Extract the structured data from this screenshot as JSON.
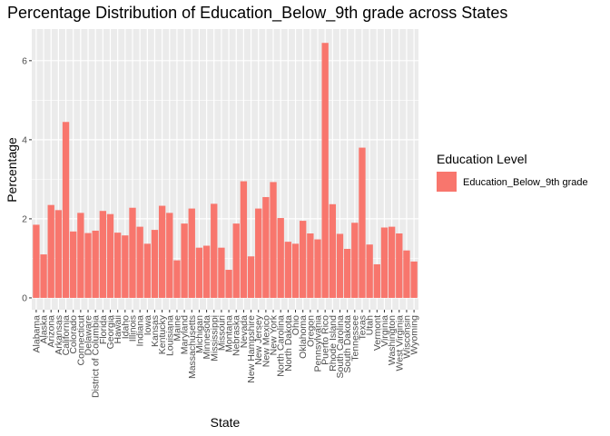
{
  "chart_data": {
    "type": "bar",
    "title": "Percentage Distribution of Education_Below_9th grade across States",
    "xlabel": "State",
    "ylabel": "Percentage",
    "ylim": [
      -0.3,
      6.8
    ],
    "yticks": [
      0,
      2,
      4,
      6
    ],
    "grid": true,
    "legend_position": "right",
    "legend": {
      "title": "Education Level",
      "entries": [
        {
          "label": "Education_Below_9th grade",
          "color": "#F8766D"
        }
      ]
    },
    "colors": {
      "bar": "#F8766D",
      "panel_bg": "#EBEBEB",
      "grid": "#FFFFFF",
      "tick_text": "#4D4D4D"
    },
    "categories": [
      "Alabama",
      "Alaska",
      "Arizona",
      "Arkansas",
      "California",
      "Colorado",
      "Connecticut",
      "Delaware",
      "District of Columbia",
      "Florida",
      "Georgia",
      "Hawaii",
      "Idaho",
      "Illinois",
      "Indiana",
      "Iowa",
      "Kansas",
      "Kentucky",
      "Louisiana",
      "Maine",
      "Maryland",
      "Massachusetts",
      "Michigan",
      "Minnesota",
      "Mississippi",
      "Missouri",
      "Montana",
      "Nebraska",
      "Nevada",
      "New Hampshire",
      "New Jersey",
      "New Mexico",
      "New York",
      "North Carolina",
      "North Dakota",
      "Ohio",
      "Oklahoma",
      "Oregon",
      "Pennsylvania",
      "Puerto Rico",
      "Rhode Island",
      "South Carolina",
      "South Dakota",
      "Tennessee",
      "Texas",
      "Utah",
      "Vermont",
      "Virginia",
      "Washington",
      "West Virginia",
      "Wisconsin",
      "Wyoming"
    ],
    "values": [
      1.85,
      1.1,
      2.35,
      2.22,
      4.45,
      1.68,
      2.15,
      1.64,
      1.7,
      2.2,
      2.12,
      1.65,
      1.58,
      2.28,
      1.8,
      1.37,
      1.72,
      2.33,
      2.15,
      0.95,
      1.88,
      2.26,
      1.27,
      1.32,
      2.38,
      1.27,
      0.71,
      1.88,
      2.95,
      1.05,
      2.26,
      2.55,
      2.93,
      2.02,
      1.42,
      1.37,
      1.95,
      1.63,
      1.48,
      6.45,
      2.37,
      1.62,
      1.24,
      1.9,
      3.8,
      1.35,
      0.85,
      1.78,
      1.8,
      1.63,
      1.2,
      0.92
    ]
  }
}
